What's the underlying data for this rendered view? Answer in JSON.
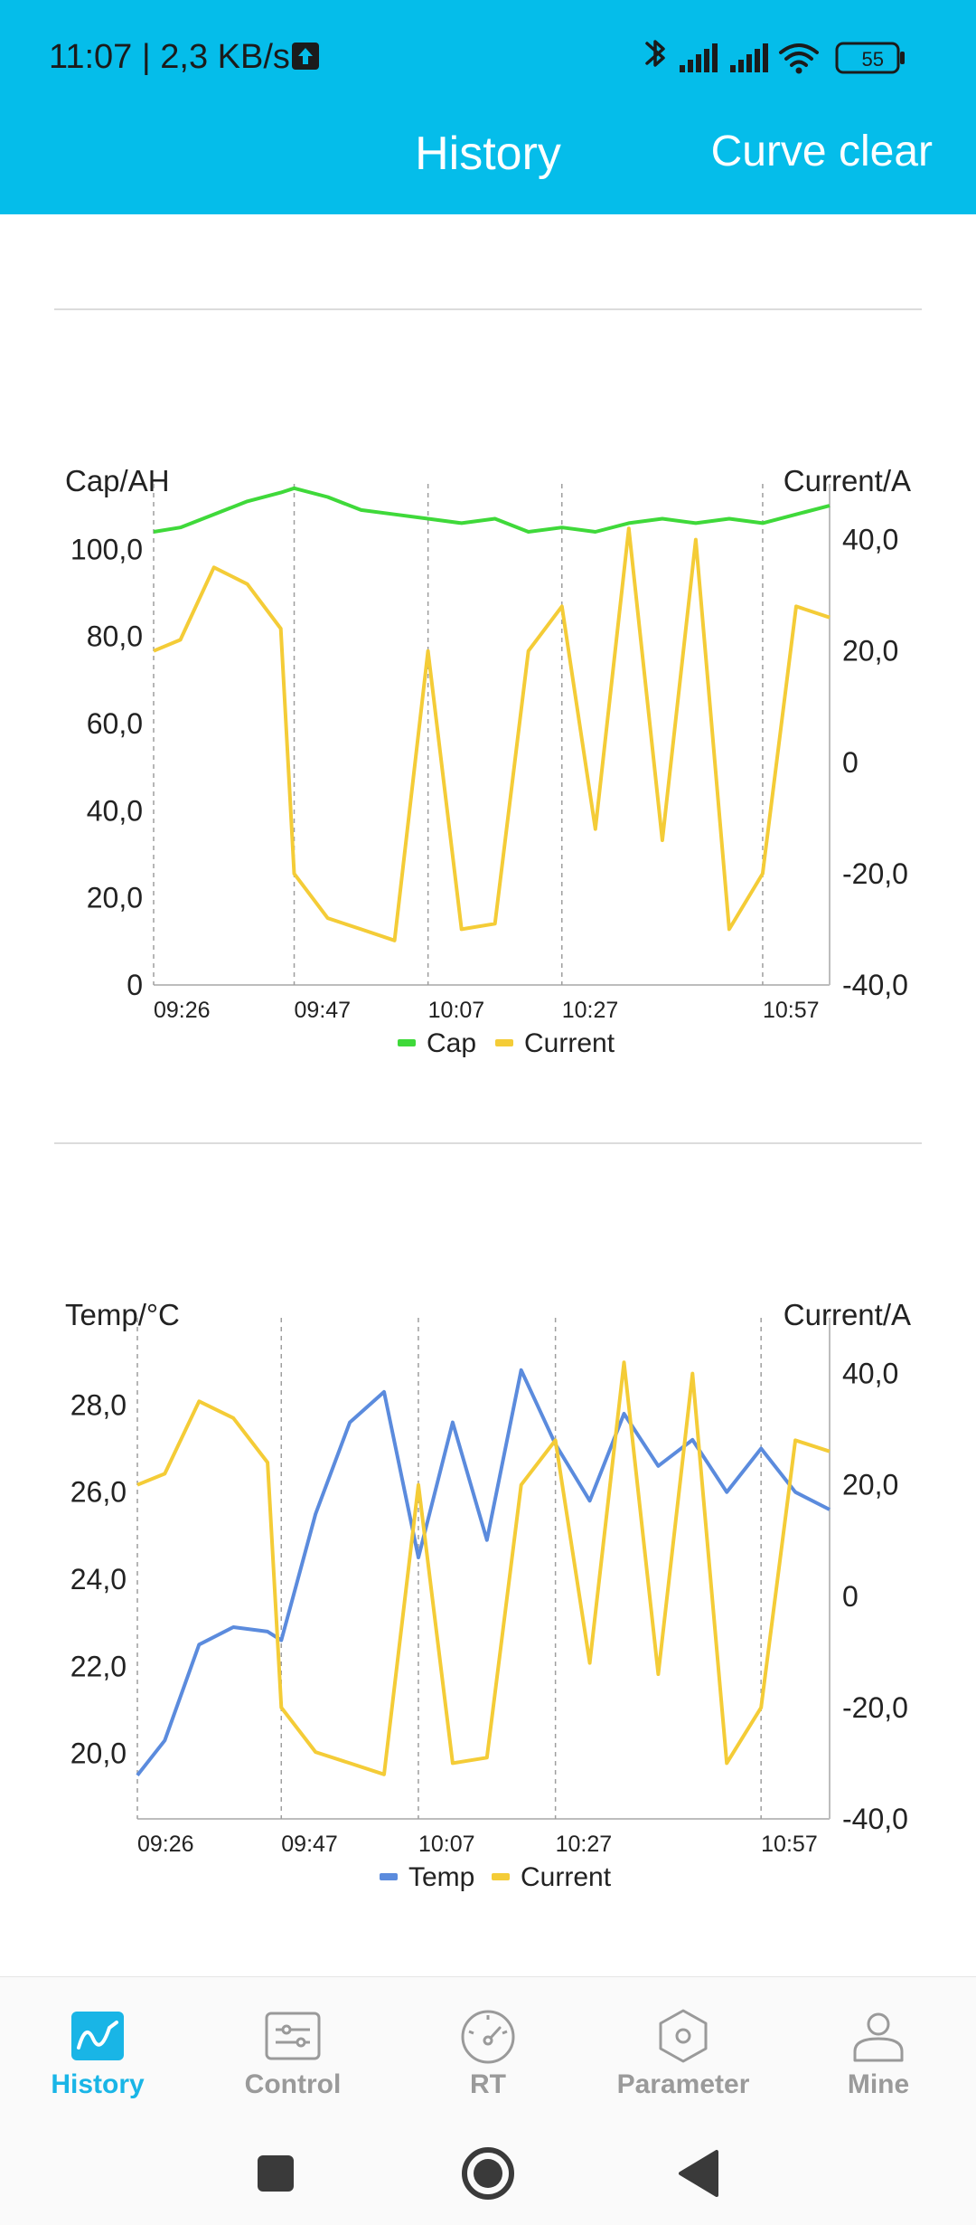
{
  "status_bar": {
    "time_speed": "11:07 | 2,3 KB/s",
    "battery": "55"
  },
  "header": {
    "title": "History",
    "action": "Curve clear"
  },
  "colors": {
    "accent": "#05BDEA",
    "cap": "#3FD93A",
    "current": "#F4CC37",
    "temp": "#5B8BDD"
  },
  "charts": [
    {
      "left_label": "Cap/AH",
      "right_label": "Current/A",
      "left_ticks": [
        "100,0",
        "80,0",
        "60,0",
        "40,0",
        "20,0",
        "0"
      ],
      "right_ticks": [
        "40,0",
        "20,0",
        "0",
        "-20,0",
        "-40,0"
      ],
      "x_ticks": [
        "09:26",
        "09:47",
        "10:07",
        "10:27",
        "10:57"
      ],
      "legend": [
        "Cap",
        "Current"
      ]
    },
    {
      "left_label": "Temp/°C",
      "right_label": "Current/A",
      "left_ticks": [
        "28,0",
        "26,0",
        "24,0",
        "22,0",
        "20,0"
      ],
      "right_ticks": [
        "40,0",
        "20,0",
        "0",
        "-20,0",
        "-40,0"
      ],
      "x_ticks": [
        "09:26",
        "09:47",
        "10:07",
        "10:27",
        "10:57"
      ],
      "legend": [
        "Temp",
        "Current"
      ]
    }
  ],
  "chart_data": [
    {
      "type": "line",
      "x": [
        "09:26",
        "09:30",
        "09:35",
        "09:40",
        "09:45",
        "09:47",
        "09:52",
        "09:57",
        "10:02",
        "10:07",
        "10:12",
        "10:17",
        "10:22",
        "10:27",
        "10:32",
        "10:37",
        "10:42",
        "10:47",
        "10:52",
        "10:57",
        "11:02",
        "11:07"
      ],
      "series": [
        {
          "name": "Cap",
          "axis": "left",
          "values": [
            104,
            105,
            108,
            111,
            113,
            114,
            112,
            109,
            108,
            107,
            106,
            107,
            104,
            105,
            104,
            106,
            107,
            106,
            107,
            106,
            108,
            110
          ]
        },
        {
          "name": "Current",
          "axis": "right",
          "values": [
            20,
            22,
            35,
            32,
            24,
            -20,
            -28,
            -30,
            -32,
            20,
            -30,
            -29,
            20,
            28,
            -12,
            42,
            -14,
            40,
            -30,
            -20,
            28,
            26
          ]
        }
      ],
      "ylim_left": [
        0,
        115
      ],
      "ylim_right": [
        -40,
        50
      ],
      "legend_position": "bottom"
    },
    {
      "type": "line",
      "x": [
        "09:26",
        "09:30",
        "09:35",
        "09:40",
        "09:45",
        "09:47",
        "09:52",
        "09:57",
        "10:02",
        "10:07",
        "10:12",
        "10:17",
        "10:22",
        "10:27",
        "10:32",
        "10:37",
        "10:42",
        "10:47",
        "10:52",
        "10:57",
        "11:02",
        "11:07"
      ],
      "series": [
        {
          "name": "Temp",
          "axis": "left",
          "values": [
            19.5,
            20.3,
            22.5,
            22.9,
            22.8,
            22.6,
            25.5,
            27.6,
            28.3,
            24.5,
            27.6,
            24.9,
            28.8,
            27.1,
            25.8,
            27.8,
            26.6,
            27.2,
            26.0,
            27.0,
            26.0,
            25.6
          ]
        },
        {
          "name": "Current",
          "axis": "right",
          "values": [
            20,
            22,
            35,
            32,
            24,
            -20,
            -28,
            -30,
            -32,
            20,
            -30,
            -29,
            20,
            28,
            -12,
            42,
            -14,
            40,
            -30,
            -20,
            28,
            26
          ]
        }
      ],
      "ylim_left": [
        18.5,
        30.0
      ],
      "ylim_right": [
        -40,
        50
      ],
      "legend_position": "bottom"
    }
  ],
  "nav": {
    "items": [
      {
        "label": "History",
        "icon": "history-chart-icon"
      },
      {
        "label": "Control",
        "icon": "sliders-icon"
      },
      {
        "label": "RT",
        "icon": "gauge-icon"
      },
      {
        "label": "Parameter",
        "icon": "hexagon-nut-icon"
      },
      {
        "label": "Mine",
        "icon": "user-icon"
      }
    ]
  }
}
